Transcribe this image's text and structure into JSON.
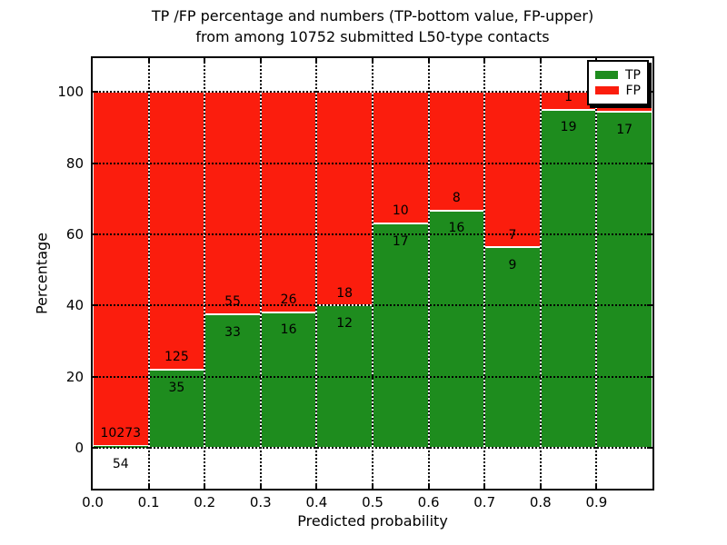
{
  "figure": {
    "title_line1": "TP /FP percentage and numbers (TP-bottom value, FP-upper)",
    "title_line2": "from among 10752 submitted L50-type contacts",
    "xlabel": "Predicted probability",
    "ylabel": "Percentage"
  },
  "legend": {
    "items": [
      {
        "label": "TP",
        "color": "#1e8c1e"
      },
      {
        "label": "FP",
        "color": "#fb1d0d"
      }
    ]
  },
  "chart_data": {
    "type": "bar",
    "stacked": true,
    "title": "TP /FP percentage and numbers (TP-bottom value, FP-upper)\nfrom among 10752 submitted L50-type contacts",
    "xlabel": "Predicted probability",
    "ylabel": "Percentage",
    "xlim": [
      0.0,
      1.0
    ],
    "ylim": [
      -11.5,
      109.5
    ],
    "xticks": [
      "0.0",
      "0.1",
      "0.2",
      "0.3",
      "0.4",
      "0.5",
      "0.6",
      "0.7",
      "0.8",
      "0.9"
    ],
    "yticks": [
      "0",
      "20",
      "40",
      "60",
      "80",
      "100"
    ],
    "ytick_values": [
      0,
      20,
      40,
      60,
      80,
      100
    ],
    "grid": true,
    "legend_position": "upper right",
    "colors": {
      "tp": "#1e8c1e",
      "fp": "#fb1d0d"
    },
    "bins": [
      {
        "range": "0.0-0.1",
        "tp_count": 54,
        "fp_count": 10273,
        "tp_pct": 0.5
      },
      {
        "range": "0.1-0.2",
        "tp_count": 35,
        "fp_count": 125,
        "tp_pct": 21.9
      },
      {
        "range": "0.2-0.3",
        "tp_count": 33,
        "fp_count": 55,
        "tp_pct": 37.5
      },
      {
        "range": "0.3-0.4",
        "tp_count": 16,
        "fp_count": 26,
        "tp_pct": 38.1
      },
      {
        "range": "0.4-0.5",
        "tp_count": 12,
        "fp_count": 18,
        "tp_pct": 40.0
      },
      {
        "range": "0.5-0.6",
        "tp_count": 17,
        "fp_count": 10,
        "tp_pct": 63.0
      },
      {
        "range": "0.6-0.7",
        "tp_count": 16,
        "fp_count": 8,
        "tp_pct": 66.7
      },
      {
        "range": "0.7-0.8",
        "tp_count": 9,
        "fp_count": 7,
        "tp_pct": 56.3
      },
      {
        "range": "0.8-0.9",
        "tp_count": 19,
        "fp_count": 1,
        "tp_pct": 95.0
      },
      {
        "range": "0.9-1.0",
        "tp_count": 17,
        "fp_count": null,
        "fp_label_hidden_by_legend": true,
        "tp_pct": 94.4
      }
    ]
  }
}
